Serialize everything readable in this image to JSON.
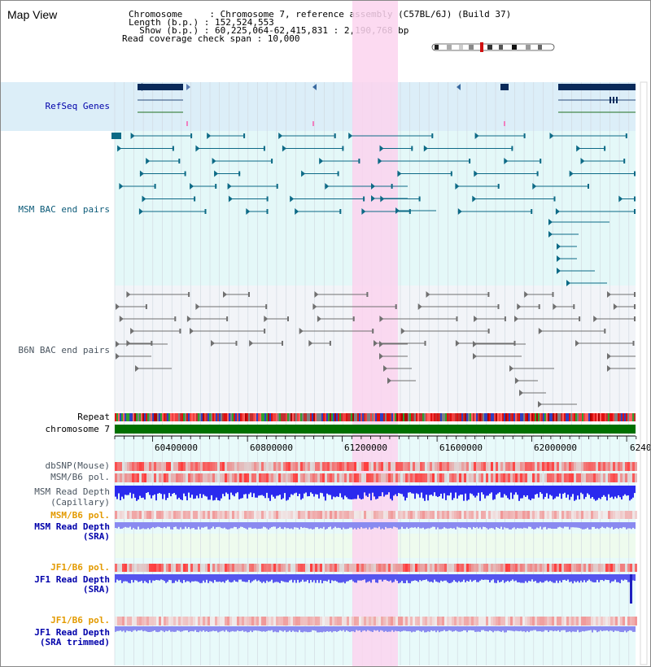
{
  "view": {
    "title": "Map View",
    "info_lines": [
      "Chromosome     : Chromosome 7, reference assembly (C57BL/6J) (Build 37)",
      "Length (b.p.) : 152,524,553",
      "  Show (b.p.) : 60,225,064-62,415,831 : 2,190,768 bp",
      "Read coverage check span : 10,000"
    ]
  },
  "tracks": {
    "refseq": "RefSeq Genes",
    "msm_bac": "MSM BAC end pairs",
    "b6n_bac": "B6N BAC end pairs",
    "repeat": "Repeat",
    "chromosome": "chromosome 7",
    "dbsnp": "dbSNP(Mouse)",
    "msm_b6_pol_1": "MSM/B6 pol.",
    "msm_depth_cap_1": "MSM Read Depth",
    "msm_depth_cap_2": "(Capillary)",
    "msm_b6_pol_2": "MSM/B6 pol.",
    "msm_depth_sra_1": "MSM Read Depth",
    "msm_depth_sra_2": "(SRA)",
    "jf1_pol_1": "JF1/B6 pol.",
    "jf1_depth_sra_1": "JF1 Read Depth",
    "jf1_depth_sra_2": "(SRA)",
    "jf1_pol_2": "JF1/B6 pol.",
    "jf1_depth_trim_1": "JF1 Read Depth",
    "jf1_depth_trim_2": "(SRA trimmed)"
  },
  "axis": {
    "ticks": [
      "60400000",
      "60800000",
      "61200000",
      "61600000",
      "62000000",
      "6240"
    ]
  },
  "colors": {
    "highlight": "#fbd4ef",
    "refseq_bg": "#dceef8",
    "msm_bg": "#e4f8f8",
    "b6n_bg": "#f2f4f8",
    "chromosome": "#007000",
    "gene": "#0a2a5a",
    "msm_feature": "#0d6a86",
    "b6n_feature": "#707070",
    "snp": "#f02020",
    "depth": "#3030ee"
  }
}
